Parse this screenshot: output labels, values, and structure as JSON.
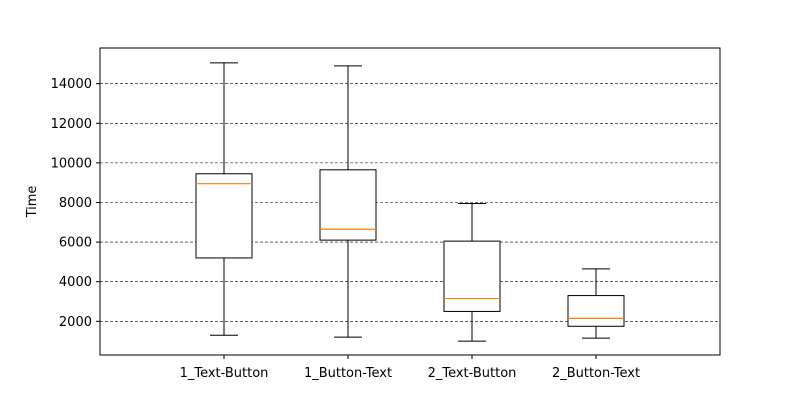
{
  "chart_data": {
    "type": "box",
    "title": "",
    "xlabel": "",
    "ylabel": "Time",
    "ylim": [
      300,
      15800
    ],
    "yticks": [
      2000,
      4000,
      6000,
      8000,
      10000,
      12000,
      14000
    ],
    "grid": {
      "axis": "y",
      "style": "dashed",
      "color": "#000000"
    },
    "colors": {
      "box": "#000000",
      "median": "#ff7f0e",
      "grid": "#000000"
    },
    "categories": [
      "1_Text-Button",
      "1_Button-Text",
      "2_Text-Button",
      "2_Button-Text"
    ],
    "boxes": [
      {
        "whisker_low": 1300,
        "q1": 5200,
        "median": 8950,
        "q3": 9450,
        "whisker_high": 15050
      },
      {
        "whisker_low": 1200,
        "q1": 6100,
        "median": 6650,
        "q3": 9650,
        "whisker_high": 14900
      },
      {
        "whisker_low": 1000,
        "q1": 2500,
        "median": 3150,
        "q3": 6050,
        "whisker_high": 7950
      },
      {
        "whisker_low": 1150,
        "q1": 1750,
        "median": 2150,
        "q3": 3300,
        "whisker_high": 4650
      }
    ]
  }
}
